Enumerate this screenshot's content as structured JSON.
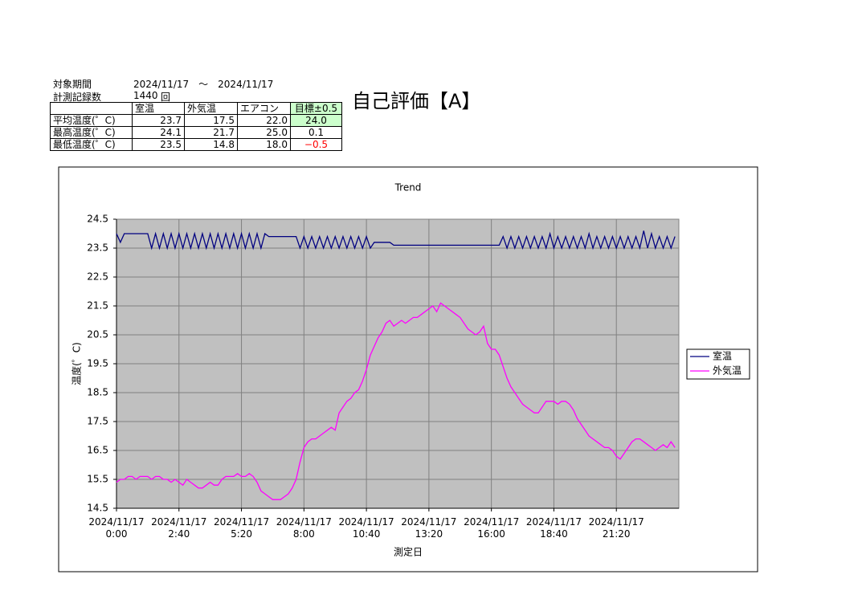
{
  "header": {
    "period_label": "対象期間",
    "period": "2024/11/17　～　2024/11/17",
    "count_label": "計測記録数",
    "count": "1440",
    "count_unit": "回",
    "evaluation": "自己評価【A】"
  },
  "table": {
    "columns": [
      "",
      "室温",
      "外気温",
      "エアコン",
      "目標±0.5"
    ],
    "rows": [
      [
        "平均温度(゜C)",
        "23.7",
        "17.5",
        "22.0",
        "24.0"
      ],
      [
        "最高温度(゜C)",
        "24.1",
        "21.7",
        "25.0",
        "0.1"
      ],
      [
        "最低温度(゜C)",
        "23.5",
        "14.8",
        "18.0",
        "−0.5"
      ]
    ]
  },
  "chart_data": {
    "type": "line",
    "title": "Trend",
    "x_label": "測定日",
    "y_label": "温度(゜C)",
    "categories": [
      "2024/11/17\n0:00",
      null,
      null,
      null,
      null,
      null,
      null,
      null,
      null,
      null,
      null,
      null,
      null,
      null,
      null,
      null,
      "2024/11/17\n2:40",
      null,
      null,
      null,
      null,
      null,
      null,
      null,
      null,
      null,
      null,
      null,
      null,
      null,
      null,
      null,
      "2024/11/17\n5:20",
      null,
      null,
      null,
      null,
      null,
      null,
      null,
      null,
      null,
      null,
      null,
      null,
      null,
      null,
      null,
      "2024/11/17\n8:00",
      null,
      null,
      null,
      null,
      null,
      null,
      null,
      null,
      null,
      null,
      null,
      null,
      null,
      null,
      null,
      "2024/11/17\n10:40",
      null,
      null,
      null,
      null,
      null,
      null,
      null,
      null,
      null,
      null,
      null,
      null,
      null,
      null,
      null,
      "2024/11/17\n13:20",
      null,
      null,
      null,
      null,
      null,
      null,
      null,
      null,
      null,
      null,
      null,
      null,
      null,
      null,
      null,
      "2024/11/17\n16:00",
      null,
      null,
      null,
      null,
      null,
      null,
      null,
      null,
      null,
      null,
      null,
      null,
      null,
      null,
      null,
      "2024/11/17\n18:40",
      null,
      null,
      null,
      null,
      null,
      null,
      null,
      null,
      null,
      null,
      null,
      null,
      null,
      null,
      null,
      "2024/11/17\n21:20",
      null,
      null,
      null,
      null,
      null,
      null,
      null,
      null,
      null,
      null,
      null,
      null,
      null,
      null,
      null
    ],
    "series": [
      {
        "name": "室温",
        "color": "#000080",
        "values": [
          24.0,
          23.7,
          24.0,
          24.0,
          24.0,
          24.0,
          24.0,
          24.0,
          24.0,
          23.5,
          24.0,
          23.5,
          24.0,
          23.5,
          24.0,
          23.5,
          24.0,
          23.5,
          24.0,
          23.5,
          24.0,
          23.5,
          24.0,
          23.5,
          24.0,
          23.5,
          24.0,
          23.5,
          24.0,
          23.5,
          24.0,
          23.5,
          24.0,
          23.5,
          24.0,
          23.5,
          24.0,
          23.5,
          24.0,
          23.9,
          23.9,
          23.9,
          23.9,
          23.9,
          23.9,
          23.9,
          23.9,
          23.5,
          23.9,
          23.5,
          23.9,
          23.5,
          23.9,
          23.5,
          23.9,
          23.5,
          23.9,
          23.5,
          23.9,
          23.5,
          23.9,
          23.5,
          23.9,
          23.5,
          23.9,
          23.5,
          23.7,
          23.7,
          23.7,
          23.7,
          23.7,
          23.6,
          23.6,
          23.6,
          23.6,
          23.6,
          23.6,
          23.6,
          23.6,
          23.6,
          23.6,
          23.6,
          23.6,
          23.6,
          23.6,
          23.6,
          23.6,
          23.6,
          23.6,
          23.6,
          23.6,
          23.6,
          23.6,
          23.6,
          23.6,
          23.6,
          23.6,
          23.6,
          23.6,
          23.9,
          23.5,
          23.9,
          23.5,
          23.9,
          23.5,
          23.9,
          23.5,
          23.9,
          23.5,
          23.9,
          23.5,
          24.0,
          23.5,
          23.9,
          23.5,
          23.9,
          23.5,
          23.9,
          23.5,
          23.9,
          23.5,
          24.0,
          23.5,
          23.9,
          23.5,
          23.9,
          23.5,
          23.9,
          23.5,
          23.9,
          23.5,
          23.9,
          23.5,
          23.9,
          23.5,
          24.1,
          23.5,
          24.0,
          23.5,
          23.9,
          23.5,
          23.9,
          23.5,
          23.9
        ]
      },
      {
        "name": "外気温",
        "color": "#ff00ff",
        "values": [
          15.4,
          15.5,
          15.5,
          15.6,
          15.6,
          15.5,
          15.6,
          15.6,
          15.6,
          15.5,
          15.6,
          15.6,
          15.5,
          15.5,
          15.4,
          15.5,
          15.4,
          15.3,
          15.5,
          15.4,
          15.3,
          15.2,
          15.2,
          15.3,
          15.4,
          15.3,
          15.3,
          15.5,
          15.6,
          15.6,
          15.6,
          15.7,
          15.6,
          15.6,
          15.7,
          15.6,
          15.4,
          15.1,
          15.0,
          14.9,
          14.8,
          14.8,
          14.8,
          14.9,
          15.0,
          15.2,
          15.5,
          16.1,
          16.6,
          16.8,
          16.9,
          16.9,
          17.0,
          17.1,
          17.2,
          17.3,
          17.2,
          17.8,
          18.0,
          18.2,
          18.3,
          18.5,
          18.6,
          18.9,
          19.3,
          19.8,
          20.1,
          20.4,
          20.6,
          20.9,
          21.0,
          20.8,
          20.9,
          21.0,
          20.9,
          21.0,
          21.1,
          21.1,
          21.2,
          21.3,
          21.4,
          21.5,
          21.3,
          21.6,
          21.5,
          21.4,
          21.3,
          21.2,
          21.1,
          20.9,
          20.7,
          20.6,
          20.5,
          20.6,
          20.8,
          20.2,
          20.0,
          20.0,
          19.8,
          19.4,
          19.0,
          18.7,
          18.5,
          18.3,
          18.1,
          18.0,
          17.9,
          17.8,
          17.8,
          18.0,
          18.2,
          18.2,
          18.2,
          18.1,
          18.2,
          18.2,
          18.1,
          17.9,
          17.6,
          17.4,
          17.2,
          17.0,
          16.9,
          16.8,
          16.7,
          16.6,
          16.6,
          16.5,
          16.3,
          16.2,
          16.4,
          16.6,
          16.8,
          16.9,
          16.9,
          16.8,
          16.7,
          16.6,
          16.5,
          16.6,
          16.7,
          16.6,
          16.8,
          16.6
        ]
      }
    ],
    "ylim": [
      14.5,
      24.5
    ],
    "yticks": [
      14.5,
      15.5,
      16.5,
      17.5,
      18.5,
      19.5,
      20.5,
      21.5,
      22.5,
      23.5,
      24.5
    ],
    "grid": true,
    "legend": "right",
    "plot_color": "#c0c0c0"
  }
}
